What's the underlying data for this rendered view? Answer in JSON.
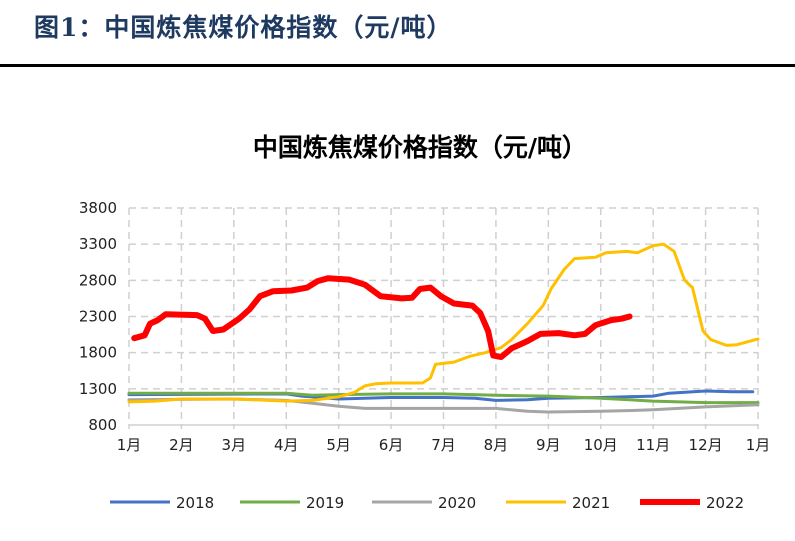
{
  "header": {
    "figure_title": "图1：中国炼焦煤价格指数（元/吨）"
  },
  "chart_data": {
    "type": "line",
    "title": "中国炼焦煤价格指数（元/吨）",
    "xlabel": "",
    "ylabel": "",
    "x_tick_labels": [
      "1月",
      "2月",
      "3月",
      "4月",
      "5月",
      "6月",
      "7月",
      "8月",
      "9月",
      "10月",
      "11月",
      "12月",
      "1月"
    ],
    "x_range_months": [
      1,
      13
    ],
    "y_ticks": [
      800,
      1300,
      1800,
      2300,
      2800,
      3300,
      3800
    ],
    "ylim": [
      800,
      3800
    ],
    "grid": "dashed, both axes",
    "legend": "bottom",
    "series": [
      {
        "name": "2018",
        "color": "#4472c4",
        "width": "thin",
        "points": [
          [
            1,
            1220
          ],
          [
            4,
            1230
          ],
          [
            4.3,
            1200
          ],
          [
            5,
            1160
          ],
          [
            6,
            1180
          ],
          [
            7,
            1180
          ],
          [
            7.6,
            1170
          ],
          [
            8,
            1140
          ],
          [
            8.6,
            1150
          ],
          [
            9,
            1170
          ],
          [
            10,
            1180
          ],
          [
            11,
            1200
          ],
          [
            11.3,
            1240
          ],
          [
            12,
            1270
          ],
          [
            12.5,
            1260
          ],
          [
            12.9,
            1260
          ]
        ]
      },
      {
        "name": "2019",
        "color": "#70ad47",
        "width": "thin",
        "points": [
          [
            1,
            1240
          ],
          [
            4,
            1240
          ],
          [
            4.5,
            1210
          ],
          [
            5,
            1220
          ],
          [
            6,
            1230
          ],
          [
            7,
            1230
          ],
          [
            8,
            1210
          ],
          [
            9,
            1200
          ],
          [
            10,
            1170
          ],
          [
            11,
            1130
          ],
          [
            12,
            1110
          ],
          [
            13,
            1110
          ]
        ]
      },
      {
        "name": "2020",
        "color": "#a5a5a5",
        "width": "thin",
        "points": [
          [
            1,
            1150
          ],
          [
            3,
            1160
          ],
          [
            4,
            1140
          ],
          [
            4.5,
            1100
          ],
          [
            5,
            1060
          ],
          [
            5.5,
            1030
          ],
          [
            6,
            1030
          ],
          [
            8,
            1030
          ],
          [
            8.6,
            990
          ],
          [
            9,
            980
          ],
          [
            10,
            990
          ],
          [
            10.6,
            1000
          ],
          [
            11,
            1010
          ],
          [
            12,
            1050
          ],
          [
            13,
            1080
          ]
        ]
      },
      {
        "name": "2021",
        "color": "#ffc000",
        "width": "thin",
        "points": [
          [
            1,
            1120
          ],
          [
            1.5,
            1130
          ],
          [
            2,
            1160
          ],
          [
            3,
            1160
          ],
          [
            4,
            1130
          ],
          [
            4.5,
            1140
          ],
          [
            5,
            1190
          ],
          [
            5.3,
            1250
          ],
          [
            5.5,
            1340
          ],
          [
            5.7,
            1370
          ],
          [
            6,
            1380
          ],
          [
            6.6,
            1380
          ],
          [
            6.75,
            1450
          ],
          [
            6.85,
            1640
          ],
          [
            7.2,
            1670
          ],
          [
            7.5,
            1750
          ],
          [
            7.8,
            1800
          ],
          [
            8.1,
            1870
          ],
          [
            8.3,
            1980
          ],
          [
            8.6,
            2200
          ],
          [
            8.9,
            2450
          ],
          [
            9.05,
            2680
          ],
          [
            9.3,
            2950
          ],
          [
            9.5,
            3100
          ],
          [
            9.9,
            3120
          ],
          [
            10.1,
            3180
          ],
          [
            10.5,
            3200
          ],
          [
            10.7,
            3180
          ],
          [
            11,
            3280
          ],
          [
            11.2,
            3300
          ],
          [
            11.4,
            3200
          ],
          [
            11.6,
            2800
          ],
          [
            11.75,
            2700
          ],
          [
            11.95,
            2100
          ],
          [
            12.1,
            1980
          ],
          [
            12.4,
            1900
          ],
          [
            12.6,
            1910
          ],
          [
            12.8,
            1950
          ],
          [
            13,
            1990
          ]
        ]
      },
      {
        "name": "2022",
        "color": "#ff0000",
        "width": "thick",
        "points": [
          [
            1.1,
            2000
          ],
          [
            1.3,
            2040
          ],
          [
            1.4,
            2200
          ],
          [
            1.55,
            2250
          ],
          [
            1.7,
            2330
          ],
          [
            2.3,
            2320
          ],
          [
            2.45,
            2270
          ],
          [
            2.6,
            2100
          ],
          [
            2.8,
            2120
          ],
          [
            3.1,
            2270
          ],
          [
            3.3,
            2400
          ],
          [
            3.5,
            2580
          ],
          [
            3.75,
            2650
          ],
          [
            4.1,
            2660
          ],
          [
            4.4,
            2700
          ],
          [
            4.6,
            2790
          ],
          [
            4.8,
            2830
          ],
          [
            5.2,
            2810
          ],
          [
            5.5,
            2740
          ],
          [
            5.8,
            2580
          ],
          [
            6.2,
            2550
          ],
          [
            6.4,
            2560
          ],
          [
            6.55,
            2680
          ],
          [
            6.75,
            2700
          ],
          [
            6.95,
            2580
          ],
          [
            7.2,
            2480
          ],
          [
            7.55,
            2450
          ],
          [
            7.7,
            2350
          ],
          [
            7.85,
            2100
          ],
          [
            7.95,
            1760
          ],
          [
            8.1,
            1740
          ],
          [
            8.3,
            1860
          ],
          [
            8.6,
            1960
          ],
          [
            8.85,
            2060
          ],
          [
            9.2,
            2070
          ],
          [
            9.5,
            2040
          ],
          [
            9.7,
            2060
          ],
          [
            9.9,
            2180
          ],
          [
            10.2,
            2250
          ],
          [
            10.4,
            2270
          ],
          [
            10.55,
            2300
          ]
        ]
      }
    ]
  }
}
